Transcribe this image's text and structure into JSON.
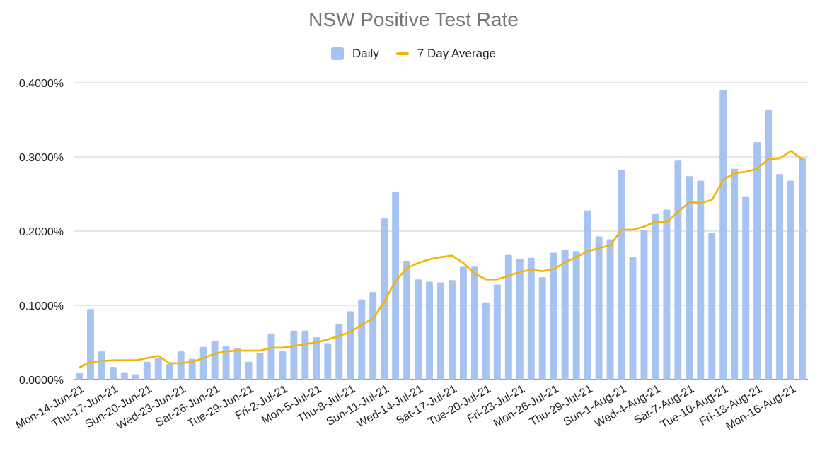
{
  "chart_data": {
    "type": "bar",
    "title": "NSW Positive Test Rate",
    "xlabel": "",
    "ylabel": "",
    "ylim": [
      0,
      0.4
    ],
    "y_ticks": [
      "0.0000%",
      "0.1000%",
      "0.2000%",
      "0.3000%",
      "0.4000%"
    ],
    "y_tick_values": [
      0,
      0.1,
      0.2,
      0.3,
      0.4
    ],
    "grid": true,
    "legend_position": "top-center",
    "categories": [
      "Mon-14-Jun-21",
      "Tue-15-Jun-21",
      "Wed-16-Jun-21",
      "Thu-17-Jun-21",
      "Fri-18-Jun-21",
      "Sat-19-Jun-21",
      "Sun-20-Jun-21",
      "Mon-21-Jun-21",
      "Tue-22-Jun-21",
      "Wed-23-Jun-21",
      "Thu-24-Jun-21",
      "Fri-25-Jun-21",
      "Sat-26-Jun-21",
      "Sun-27-Jun-21",
      "Mon-28-Jun-21",
      "Tue-29-Jun-21",
      "Wed-30-Jun-21",
      "Thu-1-Jul-21",
      "Fri-2-Jul-21",
      "Sat-3-Jul-21",
      "Sun-4-Jul-21",
      "Mon-5-Jul-21",
      "Tue-6-Jul-21",
      "Wed-7-Jul-21",
      "Thu-8-Jul-21",
      "Fri-9-Jul-21",
      "Sat-10-Jul-21",
      "Sun-11-Jul-21",
      "Mon-12-Jul-21",
      "Tue-13-Jul-21",
      "Wed-14-Jul-21",
      "Thu-15-Jul-21",
      "Fri-16-Jul-21",
      "Sat-17-Jul-21",
      "Sun-18-Jul-21",
      "Mon-19-Jul-21",
      "Tue-20-Jul-21",
      "Wed-21-Jul-21",
      "Thu-22-Jul-21",
      "Fri-23-Jul-21",
      "Sat-24-Jul-21",
      "Sun-25-Jul-21",
      "Mon-26-Jul-21",
      "Tue-27-Jul-21",
      "Wed-28-Jul-21",
      "Thu-29-Jul-21",
      "Fri-30-Jul-21",
      "Sat-31-Jul-21",
      "Sun-1-Aug-21",
      "Mon-2-Aug-21",
      "Tue-3-Aug-21",
      "Wed-4-Aug-21",
      "Thu-5-Aug-21",
      "Fri-6-Aug-21",
      "Sat-7-Aug-21",
      "Sun-8-Aug-21",
      "Mon-9-Aug-21",
      "Tue-10-Aug-21",
      "Wed-11-Aug-21",
      "Thu-12-Aug-21",
      "Fri-13-Aug-21",
      "Sat-14-Aug-21",
      "Sun-15-Aug-21",
      "Mon-16-Aug-21",
      "Tue-17-Aug-21"
    ],
    "tick_labels": [
      "Mon-14-Jun-21",
      "Thu-17-Jun-21",
      "Sun-20-Jun-21",
      "Wed-23-Jun-21",
      "Sat-26-Jun-21",
      "Tue-29-Jun-21",
      "Fri-2-Jul-21",
      "Mon-5-Jul-21",
      "Thu-8-Jul-21",
      "Sun-11-Jul-21",
      "Wed-14-Jul-21",
      "Sat-17-Jul-21",
      "Tue-20-Jul-21",
      "Fri-23-Jul-21",
      "Mon-26-Jul-21",
      "Thu-29-Jul-21",
      "Sun-1-Aug-21",
      "Wed-4-Aug-21",
      "Sat-7-Aug-21",
      "Tue-10-Aug-21",
      "Fri-13-Aug-21",
      "Mon-16-Aug-21"
    ],
    "tick_every": 3,
    "series": [
      {
        "name": "Daily",
        "kind": "bar",
        "color": "#a6c3f1",
        "values": [
          0.009,
          0.095,
          0.038,
          0.017,
          0.01,
          0.007,
          0.024,
          0.029,
          0.021,
          0.038,
          0.028,
          0.044,
          0.052,
          0.045,
          0.042,
          0.024,
          0.036,
          0.062,
          0.038,
          0.066,
          0.066,
          0.057,
          0.049,
          0.075,
          0.092,
          0.108,
          0.118,
          0.217,
          0.253,
          0.16,
          0.135,
          0.132,
          0.131,
          0.134,
          0.152,
          0.152,
          0.104,
          0.128,
          0.168,
          0.163,
          0.164,
          0.138,
          0.171,
          0.175,
          0.173,
          0.228,
          0.193,
          0.189,
          0.282,
          0.165,
          0.202,
          0.223,
          0.229,
          0.295,
          0.274,
          0.268,
          0.198,
          0.39,
          0.284,
          0.247,
          0.32,
          0.363,
          0.277,
          0.268,
          0.298
        ]
      },
      {
        "name": "7 Day Average",
        "kind": "line",
        "color": "#f4b400",
        "values": [
          0.016,
          0.024,
          0.025,
          0.026,
          0.026,
          0.026,
          0.029,
          0.032,
          0.022,
          0.022,
          0.024,
          0.029,
          0.035,
          0.038,
          0.039,
          0.039,
          0.039,
          0.043,
          0.043,
          0.045,
          0.048,
          0.05,
          0.054,
          0.059,
          0.064,
          0.074,
          0.082,
          0.105,
          0.133,
          0.15,
          0.157,
          0.162,
          0.165,
          0.167,
          0.157,
          0.143,
          0.135,
          0.135,
          0.14,
          0.145,
          0.148,
          0.146,
          0.149,
          0.158,
          0.165,
          0.173,
          0.177,
          0.181,
          0.202,
          0.202,
          0.206,
          0.213,
          0.212,
          0.226,
          0.239,
          0.238,
          0.242,
          0.269,
          0.278,
          0.28,
          0.284,
          0.297,
          0.298,
          0.308,
          0.297
        ]
      }
    ]
  }
}
